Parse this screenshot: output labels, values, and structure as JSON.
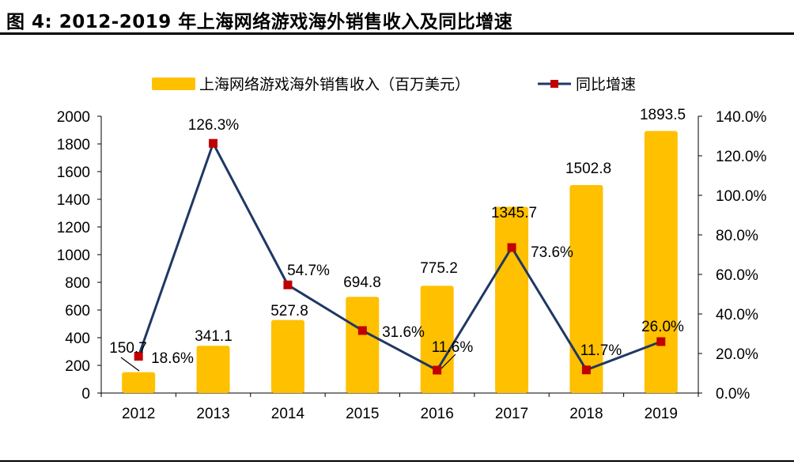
{
  "title": "图 4:  2012-2019 年上海网络游戏海外销售收入及同比增速",
  "chart_data": {
    "type": "bar+line",
    "categories": [
      "2012",
      "2013",
      "2014",
      "2015",
      "2016",
      "2017",
      "2018",
      "2019"
    ],
    "series": [
      {
        "name": "上海网络游戏海外销售收入（百万美元）",
        "type": "bar",
        "axis": "left",
        "color": "#FFC000",
        "values": [
          150.7,
          341.1,
          527.8,
          694.8,
          775.2,
          1345.7,
          1502.8,
          1893.5
        ],
        "labels": [
          "150.7",
          "341.1",
          "527.8",
          "694.8",
          "775.2",
          "1345.7",
          "1502.8",
          "1893.5"
        ]
      },
      {
        "name": "同比增速",
        "type": "line",
        "axis": "right",
        "color": "#1F3864",
        "marker_color": "#C00000",
        "values": [
          18.6,
          126.3,
          54.7,
          31.6,
          11.6,
          73.6,
          11.7,
          26.0
        ],
        "labels": [
          "18.6%",
          "126.3%",
          "54.7%",
          "31.6%",
          "11.6%",
          "73.6%",
          "11.7%",
          "26.0%"
        ]
      }
    ],
    "left_axis": {
      "ylim": [
        0,
        2000
      ],
      "ticks": [
        "0",
        "200",
        "400",
        "600",
        "800",
        "1000",
        "1200",
        "1400",
        "1600",
        "1800",
        "2000"
      ]
    },
    "right_axis": {
      "ylim": [
        0,
        140
      ],
      "ticks": [
        "0.0%",
        "20.0%",
        "40.0%",
        "60.0%",
        "80.0%",
        "100.0%",
        "120.0%",
        "140.0%"
      ]
    },
    "legend": "top",
    "grid": false
  }
}
